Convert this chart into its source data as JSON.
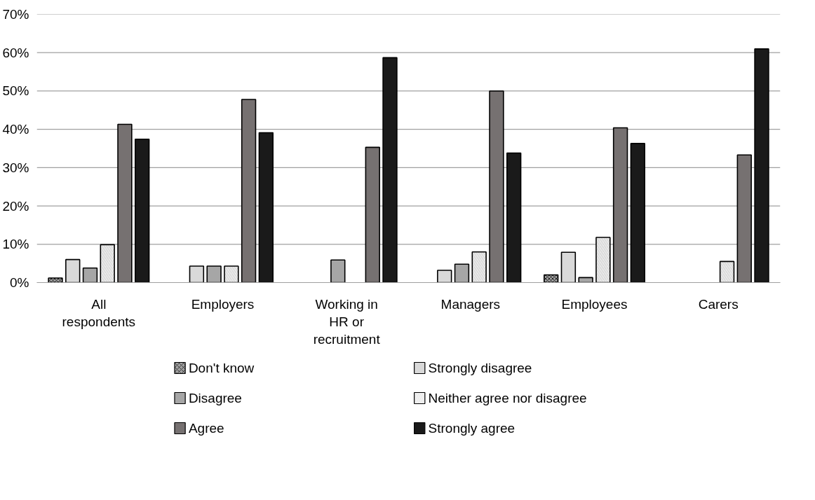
{
  "chart_data": {
    "type": "bar",
    "categories": [
      "All respondents",
      "Employers",
      "Working in HR or recruitment",
      "Managers",
      "Employees",
      "Carers"
    ],
    "series": [
      {
        "name": "Don't know",
        "color": "#a0a0a0",
        "values": [
          1.2,
          null,
          null,
          null,
          2.0,
          null
        ]
      },
      {
        "name": "Strongly disagree",
        "color": "#d9d9d9",
        "values": [
          6.0,
          4.3,
          null,
          3.2,
          7.9,
          null
        ]
      },
      {
        "name": "Disagree",
        "color": "#a6a6a6",
        "values": [
          3.8,
          4.3,
          5.9,
          4.8,
          1.3,
          null
        ]
      },
      {
        "name": "Neither agree nor disagree",
        "color": "#f2f2f2",
        "values": [
          9.9,
          4.3,
          null,
          8.0,
          11.8,
          5.5
        ]
      },
      {
        "name": "Agree",
        "color": "#767171",
        "values": [
          41.3,
          47.8,
          35.3,
          50.0,
          40.4,
          33.3
        ]
      },
      {
        "name": "Strongly agree",
        "color": "#1a1a1a",
        "values": [
          37.4,
          39.1,
          58.7,
          33.8,
          36.3,
          61.0
        ]
      }
    ],
    "ylim": [
      0,
      70
    ],
    "yticks": [
      {
        "value": 0,
        "label": "0%"
      },
      {
        "value": 10,
        "label": "10%"
      },
      {
        "value": 20,
        "label": "20%"
      },
      {
        "value": 30,
        "label": "30%"
      },
      {
        "value": 40,
        "label": "40%"
      },
      {
        "value": 50,
        "label": "50%"
      },
      {
        "value": 60,
        "label": "60%"
      },
      {
        "value": 70,
        "label": "70%"
      }
    ],
    "grid": "y",
    "legend": "bottom"
  }
}
